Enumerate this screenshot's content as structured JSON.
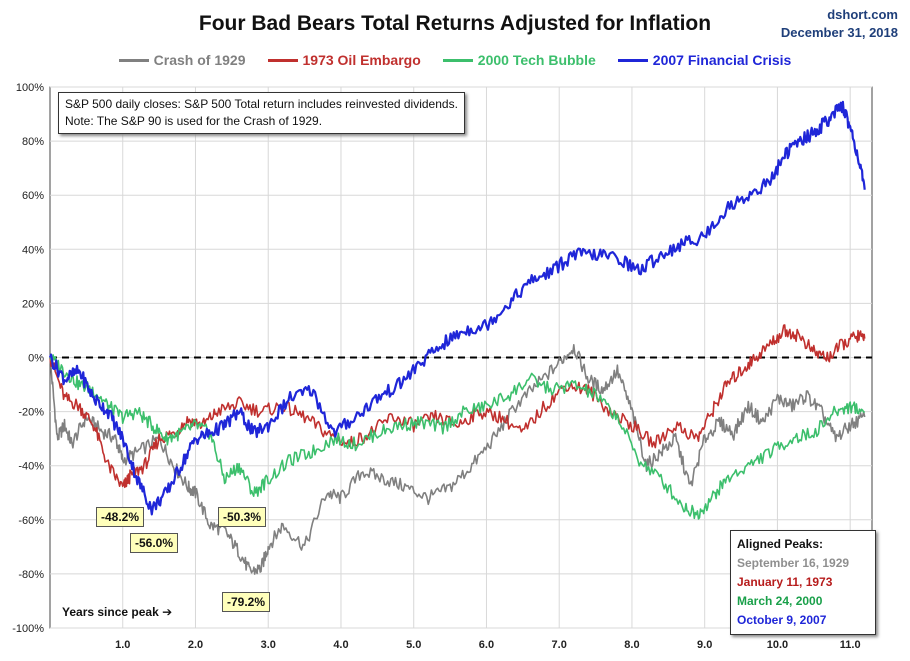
{
  "header": {
    "title": "Four Bad Bears Total Returns Adjusted for Inflation",
    "source": "dshort.com",
    "date": "December 31, 2018"
  },
  "legend": [
    {
      "label": "Crash of 1929",
      "color": "#808080"
    },
    {
      "label": "1973 Oil Embargo",
      "color": "#c0302e"
    },
    {
      "label": "2000 Tech Bubble",
      "color": "#3cbf6c"
    },
    {
      "label": "2007 Financial Crisis",
      "color": "#1f26d8"
    }
  ],
  "note": {
    "line1": "S&P 500 daily closes: S&P 500 Total return includes reinvested dividends.",
    "line2": "Note: The S&P 90 is used for the Crash of 1929."
  },
  "x_axis_note": "Years since peak ➔",
  "aligned_peaks": {
    "title": "Aligned Peaks:",
    "items": [
      {
        "label": "September 16, 1929",
        "color": "#8f8f8f"
      },
      {
        "label": "January 11, 1973",
        "color": "#b71c1c"
      },
      {
        "label": "March 24, 2000",
        "color": "#1aa04a"
      },
      {
        "label": "October 9, 2007",
        "color": "#1f26d8"
      }
    ]
  },
  "callouts": [
    {
      "label": "-48.2%"
    },
    {
      "label": "-56.0%"
    },
    {
      "label": "-50.3%"
    },
    {
      "label": "-79.2%"
    }
  ],
  "chart_data": {
    "type": "line",
    "title": "Four Bad Bears Total Returns Adjusted for Inflation",
    "xlabel": "Years since peak",
    "ylabel": "",
    "xlim": [
      0,
      11.3
    ],
    "ylim": [
      -100,
      100
    ],
    "y_ticks": [
      "100%",
      "80%",
      "60%",
      "40%",
      "20%",
      "0%",
      "-20%",
      "-40%",
      "-60%",
      "-80%",
      "-100%"
    ],
    "y_tick_values": [
      100,
      80,
      60,
      40,
      20,
      0,
      -20,
      -40,
      -60,
      -80,
      -100
    ],
    "x_ticks": [
      "1.0",
      "2.0",
      "3.0",
      "4.0",
      "5.0",
      "6.0",
      "7.0",
      "8.0",
      "9.0",
      "10.0",
      "11.0"
    ],
    "x_tick_values": [
      1,
      2,
      3,
      4,
      5,
      6,
      7,
      8,
      9,
      10,
      11
    ],
    "reference_line": 0,
    "series": [
      {
        "name": "Crash of 1929",
        "color": "#808080",
        "x": [
          0,
          0.1,
          0.2,
          0.3,
          0.5,
          0.7,
          0.9,
          1.0,
          1.2,
          1.5,
          1.7,
          1.9,
          2.0,
          2.2,
          2.4,
          2.6,
          2.75,
          2.9,
          3.0,
          3.2,
          3.5,
          3.8,
          4.0,
          4.3,
          4.6,
          4.9,
          5.2,
          5.5,
          5.8,
          6.1,
          6.4,
          6.7,
          7.0,
          7.2,
          7.4,
          7.6,
          7.8,
          8.0,
          8.2,
          8.4,
          8.6,
          8.8,
          9.0,
          9.2,
          9.4,
          9.6,
          9.8,
          10.0,
          10.2,
          10.4,
          10.6,
          10.8,
          11.0,
          11.2
        ],
        "y": [
          0,
          -30,
          -25,
          -32,
          -22,
          -27,
          -30,
          -38,
          -35,
          -30,
          -40,
          -48,
          -50,
          -62,
          -64,
          -72,
          -79.2,
          -78,
          -70,
          -62,
          -70,
          -50,
          -52,
          -42,
          -45,
          -48,
          -52,
          -48,
          -40,
          -30,
          -18,
          -10,
          -2,
          4,
          -8,
          -12,
          -5,
          -20,
          -40,
          -35,
          -30,
          -48,
          -30,
          -24,
          -28,
          -18,
          -24,
          -15,
          -18,
          -14,
          -20,
          -30,
          -25,
          -22
        ]
      },
      {
        "name": "1973 Oil Embargo",
        "color": "#c0302e",
        "x": [
          0,
          0.2,
          0.4,
          0.6,
          0.8,
          1.0,
          1.1,
          1.3,
          1.5,
          1.7,
          1.9,
          2.1,
          2.3,
          2.6,
          2.9,
          3.2,
          3.5,
          3.8,
          4.1,
          4.4,
          4.7,
          5.0,
          5.3,
          5.6,
          5.9,
          6.2,
          6.5,
          6.8,
          7.1,
          7.4,
          7.7,
          8.0,
          8.3,
          8.6,
          8.9,
          9.1,
          9.3,
          9.5,
          9.7,
          9.9,
          10.1,
          10.3,
          10.5,
          10.7,
          10.9,
          11.1,
          11.2
        ],
        "y": [
          0,
          -15,
          -18,
          -25,
          -40,
          -48.2,
          -44,
          -40,
          -30,
          -28,
          -23,
          -25,
          -20,
          -17,
          -20,
          -18,
          -22,
          -28,
          -32,
          -28,
          -22,
          -25,
          -22,
          -25,
          -20,
          -22,
          -28,
          -18,
          -10,
          -12,
          -20,
          -25,
          -32,
          -25,
          -30,
          -20,
          -10,
          -5,
          0,
          5,
          10,
          8,
          2,
          0,
          5,
          8,
          7
        ]
      },
      {
        "name": "2000 Tech Bubble",
        "color": "#3cbf6c",
        "x": [
          0,
          0.2,
          0.4,
          0.6,
          0.8,
          1.0,
          1.2,
          1.4,
          1.6,
          1.8,
          2.0,
          2.2,
          2.4,
          2.6,
          2.8,
          3.0,
          3.3,
          3.6,
          3.9,
          4.2,
          4.5,
          4.8,
          5.1,
          5.4,
          5.7,
          6.0,
          6.3,
          6.6,
          6.9,
          7.2,
          7.5,
          7.8,
          8.1,
          8.4,
          8.7,
          8.9,
          9.1,
          9.3,
          9.6,
          9.9,
          10.2,
          10.5,
          10.8,
          11.0,
          11.2
        ],
        "y": [
          0,
          -5,
          -10,
          -12,
          -18,
          -22,
          -20,
          -25,
          -30,
          -28,
          -25,
          -28,
          -45,
          -40,
          -50.3,
          -45,
          -38,
          -35,
          -30,
          -32,
          -28,
          -25,
          -24,
          -26,
          -20,
          -18,
          -14,
          -8,
          -12,
          -10,
          -14,
          -22,
          -38,
          -45,
          -55,
          -58,
          -52,
          -45,
          -40,
          -35,
          -30,
          -28,
          -20,
          -18,
          -20
        ]
      },
      {
        "name": "2007 Financial Crisis",
        "color": "#1f26d8",
        "x": [
          0,
          0.2,
          0.4,
          0.6,
          0.8,
          1.0,
          1.2,
          1.4,
          1.6,
          1.8,
          2.0,
          2.2,
          2.4,
          2.6,
          2.8,
          3.0,
          3.3,
          3.6,
          3.9,
          4.2,
          4.5,
          4.8,
          5.1,
          5.4,
          5.7,
          6.0,
          6.3,
          6.6,
          6.9,
          7.2,
          7.5,
          7.8,
          8.1,
          8.4,
          8.7,
          9.0,
          9.3,
          9.6,
          9.9,
          10.1,
          10.3,
          10.5,
          10.7,
          10.9,
          11.0,
          11.1,
          11.2
        ],
        "y": [
          0,
          -8,
          -5,
          -15,
          -20,
          -30,
          -45,
          -56.0,
          -50,
          -40,
          -30,
          -28,
          -25,
          -20,
          -28,
          -25,
          -15,
          -12,
          -28,
          -22,
          -15,
          -10,
          -2,
          5,
          10,
          12,
          20,
          28,
          32,
          38,
          38,
          37,
          32,
          38,
          42,
          45,
          55,
          60,
          65,
          75,
          80,
          83,
          88,
          93,
          85,
          75,
          62
        ]
      }
    ]
  }
}
